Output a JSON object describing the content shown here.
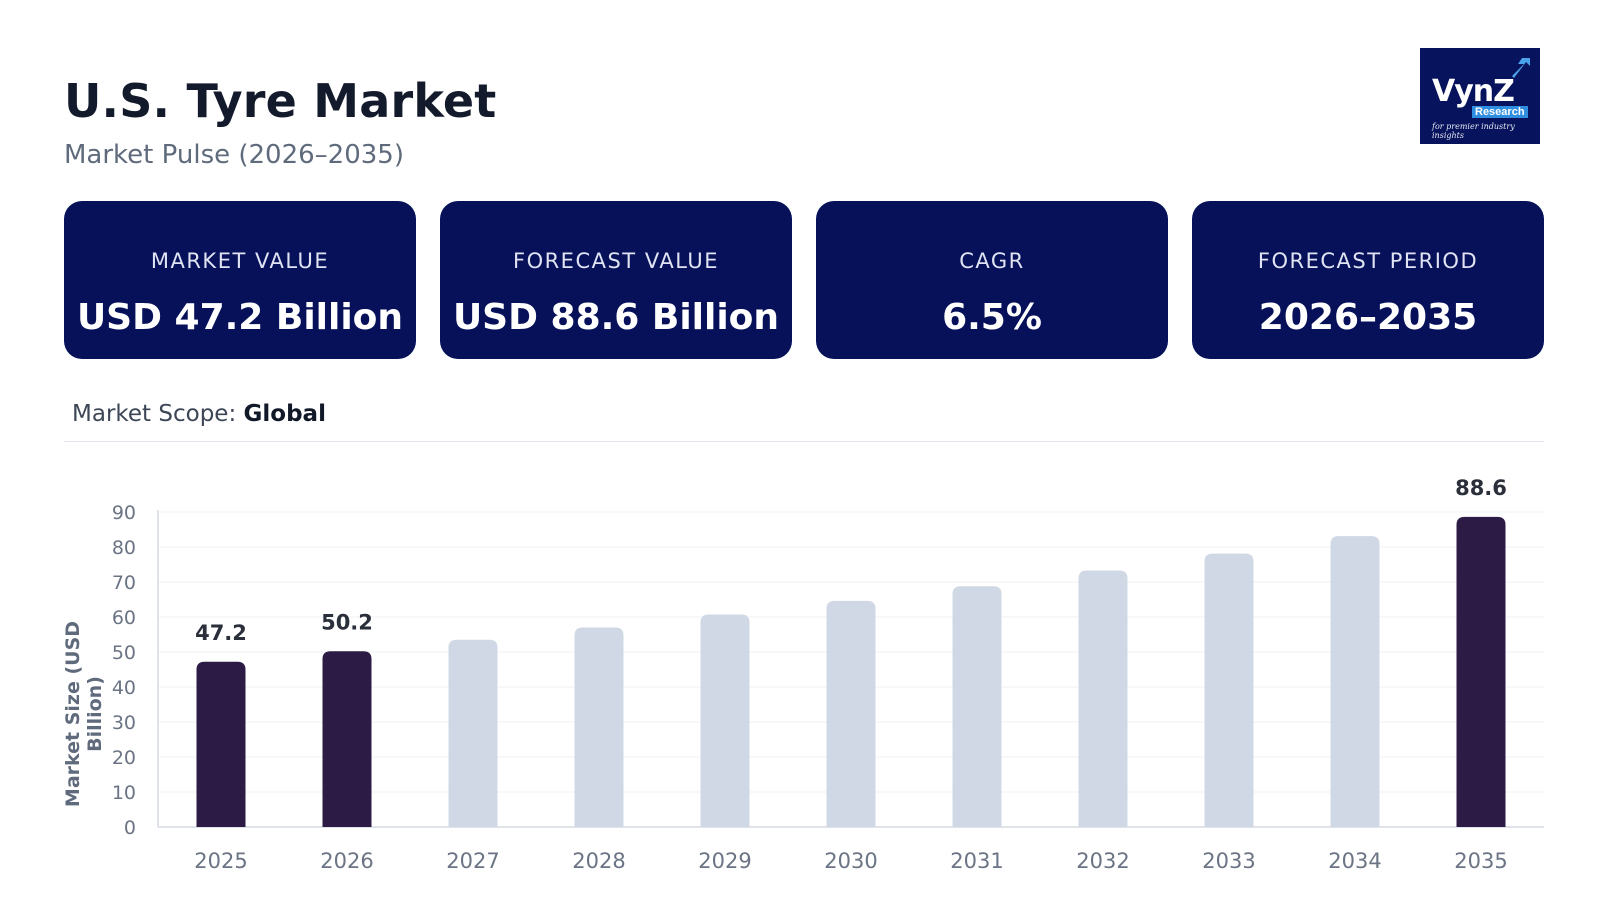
{
  "header": {
    "title": "U.S. Tyre Market",
    "subtitle": "Market Pulse (2026–2035)"
  },
  "logo": {
    "wordmark": "VynZ",
    "sub": "Research",
    "tagline": "for premier industry insights"
  },
  "cards": [
    {
      "label": "MARKET VALUE",
      "value": "USD 47.2 Billion"
    },
    {
      "label": "FORECAST VALUE",
      "value": "USD 88.6 Billion"
    },
    {
      "label": "CAGR",
      "value": "6.5%"
    },
    {
      "label": "FORECAST PERIOD",
      "value": "2026–2035"
    }
  ],
  "scope": {
    "label": "Market Scope:",
    "value": "Global"
  },
  "colors": {
    "card_bg": "#07115a",
    "bar_highlight": "#2b1b45",
    "bar_muted": "#cfd8e4"
  },
  "chart_data": {
    "type": "bar",
    "title": "",
    "xlabel": "",
    "ylabel": "Market Size (USD Billion)",
    "categories": [
      "2025",
      "2026",
      "2027",
      "2028",
      "2029",
      "2030",
      "2031",
      "2032",
      "2033",
      "2034",
      "2035"
    ],
    "values": [
      47.2,
      50.2,
      53.5,
      57.0,
      60.7,
      64.6,
      68.8,
      73.3,
      78.1,
      83.1,
      88.6
    ],
    "highlighted": [
      "2025",
      "2026",
      "2035"
    ],
    "data_labels": {
      "2025": "47.2",
      "2026": "50.2",
      "2035": "88.6"
    },
    "ylim": [
      0,
      90
    ],
    "yticks": [
      0,
      10,
      20,
      30,
      40,
      50,
      60,
      70,
      80,
      90
    ],
    "grid": true,
    "legend": "none"
  }
}
